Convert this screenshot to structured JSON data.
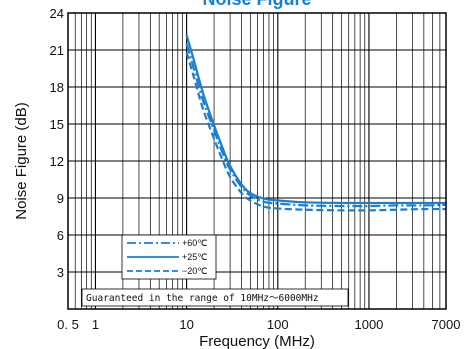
{
  "chart_data": {
    "type": "line",
    "title": "Noise Figure",
    "xlabel": "Frequency (MHz)",
    "ylabel": "Noise Figure (dB)",
    "x_scale": "log",
    "xlim": [
      0.5,
      7000
    ],
    "ylim": [
      0,
      24
    ],
    "x_ticks": [
      {
        "value": 0.5,
        "label": "0. 5"
      },
      {
        "value": 1,
        "label": "1"
      },
      {
        "value": 10,
        "label": "10"
      },
      {
        "value": 100,
        "label": "100"
      },
      {
        "value": 1000,
        "label": "1000"
      },
      {
        "value": 7000,
        "label": "7000"
      }
    ],
    "y_ticks": [
      3,
      6,
      9,
      12,
      15,
      18,
      21,
      24
    ],
    "grid": true,
    "legend_position": "lower-left",
    "line_color": "#1a7fd0",
    "series": [
      {
        "name": "+60℃",
        "style": "dashdot",
        "x": [
          10,
          12,
          15,
          20,
          25,
          30,
          40,
          50,
          70,
          100,
          200,
          500,
          1000,
          2000,
          4000,
          7000
        ],
        "y": [
          21.5,
          19.5,
          17.0,
          14.5,
          12.6,
          11.3,
          9.9,
          9.2,
          8.7,
          8.55,
          8.4,
          8.35,
          8.35,
          8.4,
          8.4,
          8.45
        ]
      },
      {
        "name": "+25℃",
        "style": "solid",
        "x": [
          10,
          12,
          15,
          20,
          25,
          30,
          40,
          50,
          70,
          100,
          200,
          500,
          1000,
          2000,
          4000,
          7000
        ],
        "y": [
          22.2,
          20.2,
          17.6,
          14.9,
          13.0,
          11.6,
          10.1,
          9.4,
          8.95,
          8.8,
          8.65,
          8.6,
          8.6,
          8.6,
          8.6,
          8.6
        ]
      },
      {
        "name": "−20℃",
        "style": "dashed",
        "x": [
          10,
          12,
          15,
          20,
          25,
          30,
          40,
          50,
          70,
          100,
          200,
          500,
          1000,
          2000,
          4000,
          7000
        ],
        "y": [
          20.8,
          18.8,
          16.3,
          13.8,
          12.0,
          10.7,
          9.4,
          8.8,
          8.3,
          8.15,
          8.05,
          8.0,
          8.0,
          8.05,
          8.1,
          8.1
        ]
      }
    ],
    "annotation": "Guaranteed in the range of 10MHz～6000MHz"
  }
}
